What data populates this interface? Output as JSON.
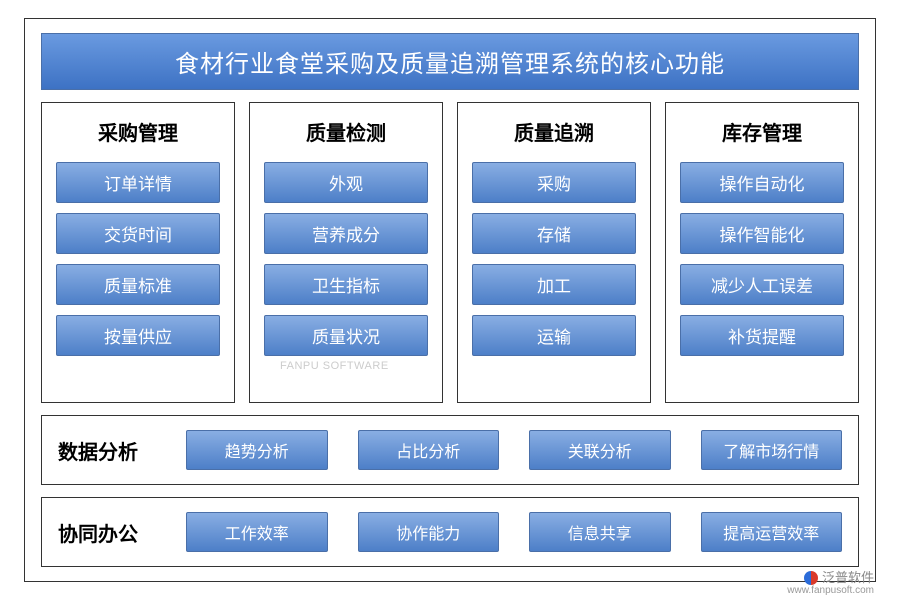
{
  "colors": {
    "pill_gradient_top": "#89aee3",
    "pill_gradient_bottom": "#4d7fc8",
    "title_gradient_top": "#6a9ae0",
    "title_gradient_bottom": "#3d72c4",
    "border": "#333333",
    "text_on_pill": "#ffffff",
    "background": "#ffffff"
  },
  "title": "食材行业食堂采购及质量追溯管理系统的核心功能",
  "columns": [
    {
      "title": "采购管理",
      "items": [
        "订单详情",
        "交货时间",
        "质量标准",
        "按量供应"
      ]
    },
    {
      "title": "质量检测",
      "items": [
        "外观",
        "营养成分",
        "卫生指标",
        "质量状况"
      ]
    },
    {
      "title": "质量追溯",
      "items": [
        "采购",
        "存储",
        "加工",
        "运输"
      ]
    },
    {
      "title": "库存管理",
      "items": [
        "操作自动化",
        "操作智能化",
        "减少人工误差",
        "补货提醒"
      ]
    }
  ],
  "rows": [
    {
      "title": "数据分析",
      "items": [
        "趋势分析",
        "占比分析",
        "关联分析",
        "了解市场行情"
      ]
    },
    {
      "title": "协同办公",
      "items": [
        "工作效率",
        "协作能力",
        "信息共享",
        "提高运营效率"
      ]
    }
  ],
  "watermark": {
    "center": "FANPU SOFTWARE",
    "brand": "泛普软件",
    "url": "www.fanpusoft.com"
  }
}
